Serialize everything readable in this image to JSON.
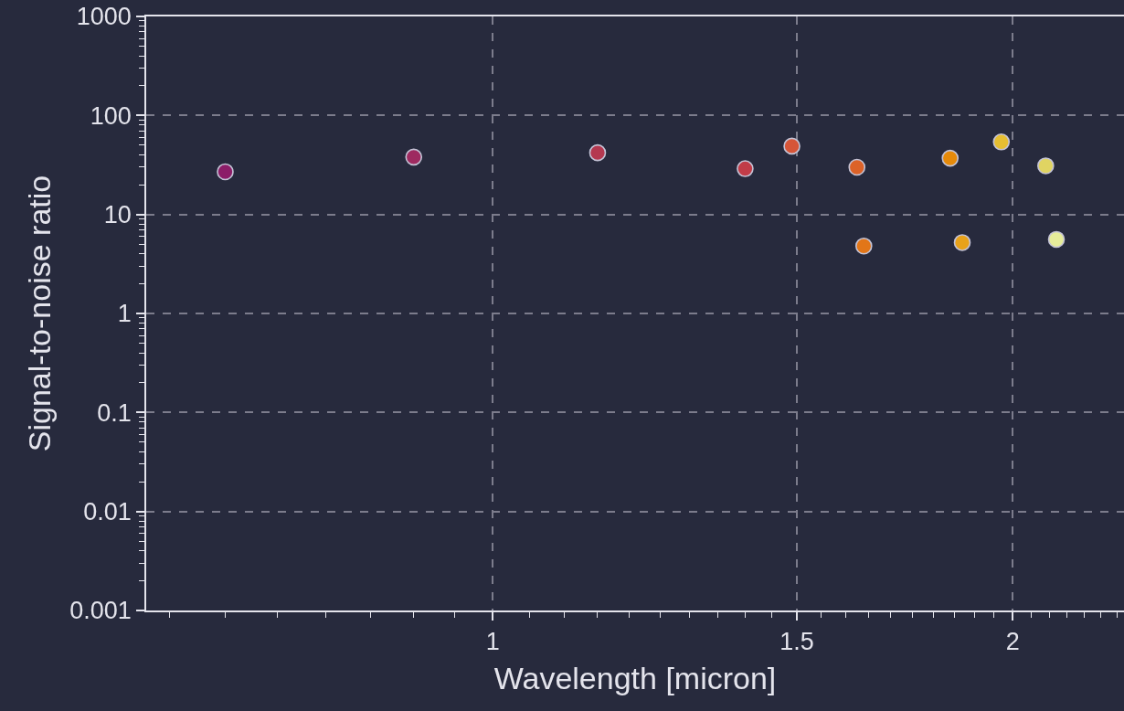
{
  "chart_data": {
    "type": "scatter",
    "xlabel": "Wavelength [micron]",
    "ylabel": "Signal-to-noise ratio",
    "x": [
      0.7,
      0.9,
      1.15,
      1.4,
      1.49,
      1.625,
      1.64,
      1.84,
      1.87,
      1.97,
      2.09,
      2.12
    ],
    "values": [
      27,
      38,
      42,
      29,
      49,
      30,
      4.8,
      37,
      5.2,
      54,
      31,
      5.6
    ],
    "colors": [
      "#8c1d68",
      "#9e2a60",
      "#b43850",
      "#c13c48",
      "#d65538",
      "#dc6228",
      "#e27618",
      "#e68a0a",
      "#e8a21a",
      "#e6be32",
      "#e0d462",
      "#e6ec9a"
    ],
    "xlim": [
      0.63,
      2.32
    ],
    "ylim": [
      0.001,
      1000
    ],
    "log": "xy",
    "xticks": [
      {
        "value": 0.65,
        "label": null
      },
      {
        "value": 0.7,
        "label": null
      },
      {
        "value": 0.75,
        "label": null
      },
      {
        "value": 0.8,
        "label": null
      },
      {
        "value": 0.85,
        "label": null
      },
      {
        "value": 0.9,
        "label": null
      },
      {
        "value": 0.95,
        "label": null
      },
      1,
      {
        "value": 1.05,
        "label": null
      },
      {
        "value": 1.1,
        "label": null
      },
      {
        "value": 1.15,
        "label": null
      },
      {
        "value": 1.2,
        "label": null
      },
      {
        "value": 1.25,
        "label": null
      },
      {
        "value": 1.3,
        "label": null
      },
      {
        "value": 1.35,
        "label": null
      },
      {
        "value": 1.4,
        "label": null
      },
      {
        "value": 1.45,
        "label": null
      },
      1.5,
      {
        "value": 1.55,
        "label": null
      },
      {
        "value": 1.6,
        "label": null
      },
      {
        "value": 1.65,
        "label": null
      },
      {
        "value": 1.7,
        "label": null
      },
      {
        "value": 1.75,
        "label": null
      },
      {
        "value": 1.8,
        "label": null
      },
      {
        "value": 1.85,
        "label": null
      },
      {
        "value": 1.9,
        "label": null
      },
      {
        "value": 1.95,
        "label": null
      },
      2,
      {
        "value": 2.05,
        "label": null
      },
      {
        "value": 2.1,
        "label": null
      },
      {
        "value": 2.15,
        "label": null
      },
      {
        "value": 2.2,
        "label": null
      },
      {
        "value": 2.25,
        "label": null
      },
      {
        "value": 2.3,
        "label": null
      }
    ],
    "yticks": [
      0.001,
      {
        "value": 0.002,
        "label": null
      },
      {
        "value": 0.003,
        "label": null
      },
      {
        "value": 0.004,
        "label": null
      },
      {
        "value": 0.005,
        "label": null
      },
      {
        "value": 0.006,
        "label": null
      },
      {
        "value": 0.007,
        "label": null
      },
      {
        "value": 0.008,
        "label": null
      },
      {
        "value": 0.009,
        "label": null
      },
      0.01,
      {
        "value": 0.02,
        "label": null
      },
      {
        "value": 0.03,
        "label": null
      },
      {
        "value": 0.04,
        "label": null
      },
      {
        "value": 0.05,
        "label": null
      },
      {
        "value": 0.06,
        "label": null
      },
      {
        "value": 0.07,
        "label": null
      },
      {
        "value": 0.08,
        "label": null
      },
      {
        "value": 0.09,
        "label": null
      },
      0.1,
      {
        "value": 0.2,
        "label": null
      },
      {
        "value": 0.3,
        "label": null
      },
      {
        "value": 0.4,
        "label": null
      },
      {
        "value": 0.5,
        "label": null
      },
      {
        "value": 0.6,
        "label": null
      },
      {
        "value": 0.7,
        "label": null
      },
      {
        "value": 0.8,
        "label": null
      },
      {
        "value": 0.9,
        "label": null
      },
      1,
      {
        "value": 2,
        "label": null
      },
      {
        "value": 3,
        "label": null
      },
      {
        "value": 4,
        "label": null
      },
      {
        "value": 5,
        "label": null
      },
      {
        "value": 6,
        "label": null
      },
      {
        "value": 7,
        "label": null
      },
      {
        "value": 8,
        "label": null
      },
      {
        "value": 9,
        "label": null
      },
      10,
      {
        "value": 20,
        "label": null
      },
      {
        "value": 30,
        "label": null
      },
      {
        "value": 40,
        "label": null
      },
      {
        "value": 50,
        "label": null
      },
      {
        "value": 60,
        "label": null
      },
      {
        "value": 70,
        "label": null
      },
      {
        "value": 80,
        "label": null
      },
      {
        "value": 90,
        "label": null
      },
      100,
      {
        "value": 200,
        "label": null
      },
      {
        "value": 300,
        "label": null
      },
      {
        "value": 400,
        "label": null
      },
      {
        "value": 500,
        "label": null
      },
      {
        "value": 600,
        "label": null
      },
      {
        "value": 700,
        "label": null
      },
      {
        "value": 800,
        "label": null
      },
      {
        "value": 900,
        "label": null
      },
      1000
    ],
    "grid": true,
    "marker": "circle"
  }
}
